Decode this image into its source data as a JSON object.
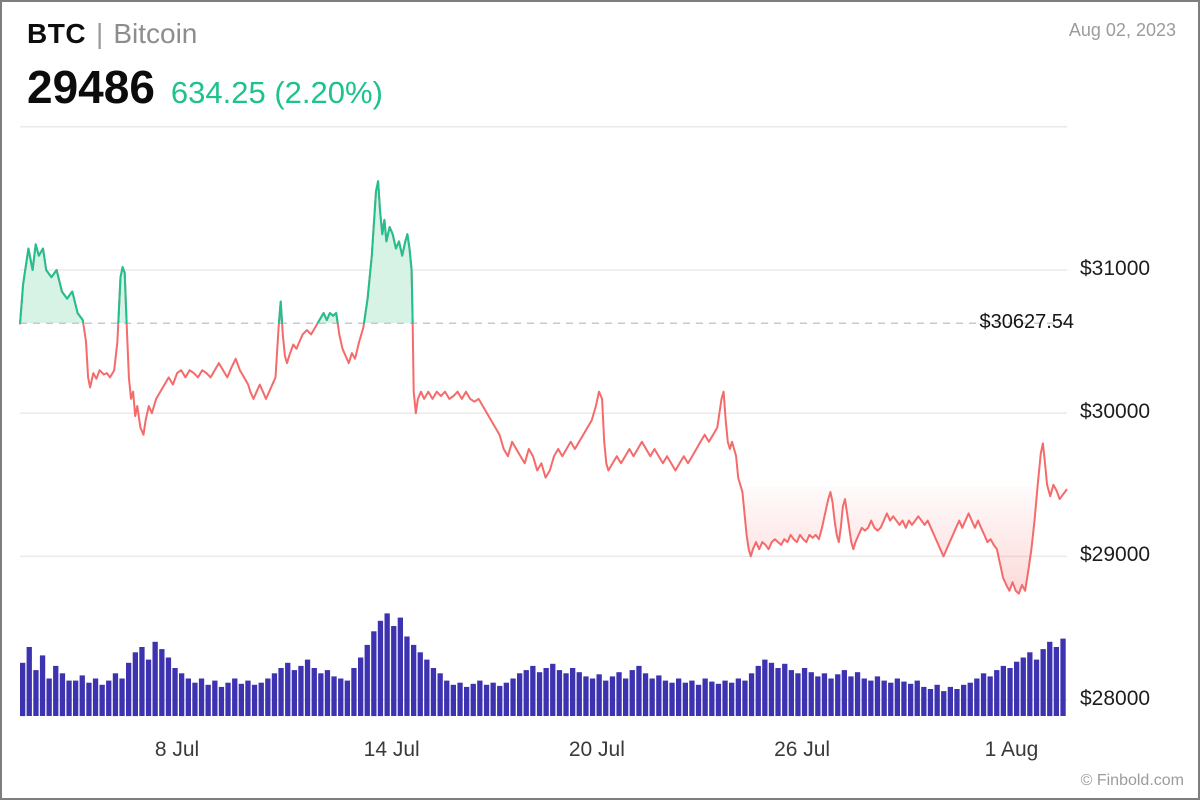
{
  "header": {
    "symbol": "BTC",
    "separator": "|",
    "name": "Bitcoin",
    "price": "29486",
    "change": "634.25 (2.20%)",
    "date": "Aug 02, 2023"
  },
  "footer": {
    "credit": "© Finbold.com"
  },
  "colors": {
    "up": "#1EC28E",
    "up_fill": "#D6F3E5",
    "down": "#F56A6A",
    "volume": "#3D32B0",
    "grid": "#EAEAEA",
    "ref_line": "#C9C9C9"
  },
  "chart_data": {
    "type": "line",
    "title": "BTC | Bitcoin price with volume",
    "xlabel": "",
    "ylabel": "",
    "ylim": [
      28000,
      32000
    ],
    "grid": true,
    "reference_price": 30627.54,
    "reference_label": "$30627.54",
    "current_price": 29486,
    "y_gridlines": [
      32000,
      31000,
      30000,
      29000,
      28000
    ],
    "y_ticks": [
      {
        "price": 31000,
        "label": "$31000"
      },
      {
        "price": 30000,
        "label": "$30000"
      },
      {
        "price": 29000,
        "label": "$29000"
      },
      {
        "price": 28000,
        "label": "$28000"
      }
    ],
    "x_ticks": [
      {
        "pos": 150,
        "label": "8 Jul"
      },
      {
        "pos": 355,
        "label": "14 Jul"
      },
      {
        "pos": 551,
        "label": "20 Jul"
      },
      {
        "pos": 747,
        "label": "26 Jul"
      },
      {
        "pos": 947,
        "label": "1 Aug"
      }
    ],
    "price_series": [
      [
        0,
        30620
      ],
      [
        3,
        30900
      ],
      [
        8,
        31150
      ],
      [
        12,
        31000
      ],
      [
        15,
        31180
      ],
      [
        18,
        31100
      ],
      [
        22,
        31150
      ],
      [
        25,
        31000
      ],
      [
        30,
        30950
      ],
      [
        35,
        31000
      ],
      [
        40,
        30850
      ],
      [
        45,
        30800
      ],
      [
        50,
        30850
      ],
      [
        55,
        30700
      ],
      [
        60,
        30650
      ],
      [
        63,
        30500
      ],
      [
        65,
        30250
      ],
      [
        67,
        30180
      ],
      [
        70,
        30280
      ],
      [
        73,
        30240
      ],
      [
        76,
        30300
      ],
      [
        80,
        30270
      ],
      [
        83,
        30280
      ],
      [
        86,
        30250
      ],
      [
        90,
        30300
      ],
      [
        93,
        30500
      ],
      [
        96,
        30950
      ],
      [
        98,
        31020
      ],
      [
        100,
        30980
      ],
      [
        102,
        30600
      ],
      [
        104,
        30250
      ],
      [
        106,
        30100
      ],
      [
        108,
        30150
      ],
      [
        110,
        29980
      ],
      [
        112,
        30050
      ],
      [
        115,
        29900
      ],
      [
        118,
        29850
      ],
      [
        120,
        29950
      ],
      [
        123,
        30050
      ],
      [
        126,
        30000
      ],
      [
        130,
        30100
      ],
      [
        134,
        30150
      ],
      [
        138,
        30200
      ],
      [
        142,
        30250
      ],
      [
        146,
        30200
      ],
      [
        150,
        30280
      ],
      [
        154,
        30300
      ],
      [
        158,
        30250
      ],
      [
        162,
        30300
      ],
      [
        166,
        30280
      ],
      [
        170,
        30250
      ],
      [
        174,
        30300
      ],
      [
        178,
        30280
      ],
      [
        182,
        30250
      ],
      [
        186,
        30300
      ],
      [
        190,
        30350
      ],
      [
        194,
        30300
      ],
      [
        198,
        30250
      ],
      [
        202,
        30320
      ],
      [
        206,
        30380
      ],
      [
        210,
        30300
      ],
      [
        214,
        30250
      ],
      [
        218,
        30200
      ],
      [
        220,
        30150
      ],
      [
        223,
        30100
      ],
      [
        226,
        30150
      ],
      [
        229,
        30200
      ],
      [
        232,
        30150
      ],
      [
        235,
        30100
      ],
      [
        238,
        30150
      ],
      [
        241,
        30200
      ],
      [
        244,
        30250
      ],
      [
        247,
        30600
      ],
      [
        249,
        30780
      ],
      [
        251,
        30550
      ],
      [
        253,
        30400
      ],
      [
        255,
        30350
      ],
      [
        258,
        30420
      ],
      [
        261,
        30480
      ],
      [
        264,
        30450
      ],
      [
        267,
        30500
      ],
      [
        270,
        30550
      ],
      [
        274,
        30580
      ],
      [
        278,
        30550
      ],
      [
        282,
        30600
      ],
      [
        286,
        30650
      ],
      [
        290,
        30700
      ],
      [
        293,
        30650
      ],
      [
        296,
        30700
      ],
      [
        299,
        30680
      ],
      [
        302,
        30700
      ],
      [
        305,
        30550
      ],
      [
        308,
        30450
      ],
      [
        311,
        30400
      ],
      [
        314,
        30350
      ],
      [
        317,
        30420
      ],
      [
        320,
        30380
      ],
      [
        324,
        30500
      ],
      [
        328,
        30600
      ],
      [
        332,
        30800
      ],
      [
        336,
        31100
      ],
      [
        340,
        31550
      ],
      [
        342,
        31620
      ],
      [
        344,
        31400
      ],
      [
        346,
        31250
      ],
      [
        348,
        31350
      ],
      [
        350,
        31200
      ],
      [
        353,
        31300
      ],
      [
        356,
        31250
      ],
      [
        359,
        31150
      ],
      [
        362,
        31200
      ],
      [
        365,
        31100
      ],
      [
        368,
        31200
      ],
      [
        370,
        31250
      ],
      [
        372,
        31150
      ],
      [
        374,
        31000
      ],
      [
        375,
        30650
      ],
      [
        376,
        30150
      ],
      [
        378,
        30000
      ],
      [
        380,
        30100
      ],
      [
        383,
        30150
      ],
      [
        386,
        30100
      ],
      [
        390,
        30150
      ],
      [
        394,
        30100
      ],
      [
        398,
        30150
      ],
      [
        402,
        30120
      ],
      [
        406,
        30150
      ],
      [
        410,
        30100
      ],
      [
        414,
        30120
      ],
      [
        418,
        30150
      ],
      [
        422,
        30100
      ],
      [
        426,
        30150
      ],
      [
        430,
        30100
      ],
      [
        434,
        30080
      ],
      [
        438,
        30100
      ],
      [
        442,
        30050
      ],
      [
        446,
        30000
      ],
      [
        450,
        29950
      ],
      [
        454,
        29900
      ],
      [
        458,
        29850
      ],
      [
        462,
        29750
      ],
      [
        466,
        29700
      ],
      [
        470,
        29800
      ],
      [
        474,
        29750
      ],
      [
        478,
        29700
      ],
      [
        482,
        29650
      ],
      [
        486,
        29750
      ],
      [
        490,
        29700
      ],
      [
        494,
        29600
      ],
      [
        498,
        29650
      ],
      [
        502,
        29550
      ],
      [
        506,
        29600
      ],
      [
        510,
        29700
      ],
      [
        514,
        29750
      ],
      [
        518,
        29700
      ],
      [
        522,
        29750
      ],
      [
        526,
        29800
      ],
      [
        530,
        29750
      ],
      [
        534,
        29800
      ],
      [
        538,
        29850
      ],
      [
        542,
        29900
      ],
      [
        546,
        29950
      ],
      [
        550,
        30050
      ],
      [
        553,
        30150
      ],
      [
        556,
        30100
      ],
      [
        558,
        29800
      ],
      [
        560,
        29650
      ],
      [
        562,
        29600
      ],
      [
        566,
        29650
      ],
      [
        570,
        29700
      ],
      [
        574,
        29650
      ],
      [
        578,
        29700
      ],
      [
        582,
        29750
      ],
      [
        586,
        29700
      ],
      [
        590,
        29750
      ],
      [
        594,
        29800
      ],
      [
        598,
        29750
      ],
      [
        602,
        29700
      ],
      [
        606,
        29750
      ],
      [
        610,
        29700
      ],
      [
        614,
        29650
      ],
      [
        618,
        29700
      ],
      [
        622,
        29650
      ],
      [
        626,
        29600
      ],
      [
        630,
        29650
      ],
      [
        634,
        29700
      ],
      [
        638,
        29650
      ],
      [
        642,
        29700
      ],
      [
        646,
        29750
      ],
      [
        650,
        29800
      ],
      [
        654,
        29850
      ],
      [
        658,
        29800
      ],
      [
        662,
        29850
      ],
      [
        666,
        29900
      ],
      [
        670,
        30100
      ],
      [
        672,
        30150
      ],
      [
        674,
        29950
      ],
      [
        676,
        29800
      ],
      [
        678,
        29750
      ],
      [
        680,
        29800
      ],
      [
        682,
        29750
      ],
      [
        684,
        29700
      ],
      [
        686,
        29550
      ],
      [
        688,
        29500
      ],
      [
        690,
        29450
      ],
      [
        692,
        29300
      ],
      [
        694,
        29150
      ],
      [
        696,
        29050
      ],
      [
        698,
        29000
      ],
      [
        700,
        29050
      ],
      [
        703,
        29100
      ],
      [
        706,
        29050
      ],
      [
        709,
        29100
      ],
      [
        712,
        29080
      ],
      [
        715,
        29050
      ],
      [
        718,
        29100
      ],
      [
        721,
        29120
      ],
      [
        724,
        29100
      ],
      [
        727,
        29080
      ],
      [
        730,
        29120
      ],
      [
        733,
        29100
      ],
      [
        736,
        29150
      ],
      [
        739,
        29120
      ],
      [
        742,
        29100
      ],
      [
        745,
        29150
      ],
      [
        748,
        29120
      ],
      [
        751,
        29100
      ],
      [
        754,
        29150
      ],
      [
        757,
        29130
      ],
      [
        760,
        29150
      ],
      [
        763,
        29120
      ],
      [
        766,
        29200
      ],
      [
        769,
        29300
      ],
      [
        772,
        29400
      ],
      [
        774,
        29450
      ],
      [
        776,
        29380
      ],
      [
        778,
        29250
      ],
      [
        780,
        29150
      ],
      [
        782,
        29100
      ],
      [
        784,
        29200
      ],
      [
        786,
        29350
      ],
      [
        788,
        29400
      ],
      [
        790,
        29300
      ],
      [
        792,
        29200
      ],
      [
        794,
        29100
      ],
      [
        796,
        29050
      ],
      [
        798,
        29100
      ],
      [
        801,
        29150
      ],
      [
        804,
        29200
      ],
      [
        807,
        29180
      ],
      [
        810,
        29200
      ],
      [
        813,
        29250
      ],
      [
        816,
        29200
      ],
      [
        819,
        29180
      ],
      [
        822,
        29200
      ],
      [
        825,
        29250
      ],
      [
        828,
        29300
      ],
      [
        831,
        29250
      ],
      [
        834,
        29280
      ],
      [
        837,
        29250
      ],
      [
        840,
        29220
      ],
      [
        843,
        29250
      ],
      [
        846,
        29200
      ],
      [
        849,
        29250
      ],
      [
        852,
        29220
      ],
      [
        855,
        29250
      ],
      [
        858,
        29280
      ],
      [
        861,
        29250
      ],
      [
        864,
        29220
      ],
      [
        867,
        29250
      ],
      [
        870,
        29200
      ],
      [
        873,
        29150
      ],
      [
        876,
        29100
      ],
      [
        879,
        29050
      ],
      [
        882,
        29000
      ],
      [
        885,
        29050
      ],
      [
        888,
        29100
      ],
      [
        891,
        29150
      ],
      [
        894,
        29200
      ],
      [
        897,
        29250
      ],
      [
        900,
        29200
      ],
      [
        903,
        29250
      ],
      [
        906,
        29300
      ],
      [
        909,
        29250
      ],
      [
        912,
        29200
      ],
      [
        915,
        29250
      ],
      [
        918,
        29200
      ],
      [
        921,
        29150
      ],
      [
        924,
        29100
      ],
      [
        927,
        29120
      ],
      [
        930,
        29080
      ],
      [
        933,
        29050
      ],
      [
        936,
        28950
      ],
      [
        939,
        28850
      ],
      [
        942,
        28800
      ],
      [
        945,
        28760
      ],
      [
        948,
        28820
      ],
      [
        951,
        28760
      ],
      [
        954,
        28740
      ],
      [
        957,
        28800
      ],
      [
        960,
        28760
      ],
      [
        963,
        28900
      ],
      [
        966,
        29050
      ],
      [
        969,
        29250
      ],
      [
        972,
        29500
      ],
      [
        975,
        29720
      ],
      [
        977,
        29790
      ],
      [
        979,
        29650
      ],
      [
        981,
        29500
      ],
      [
        984,
        29420
      ],
      [
        987,
        29500
      ],
      [
        990,
        29460
      ],
      [
        993,
        29400
      ],
      [
        996,
        29430
      ],
      [
        1000,
        29470
      ]
    ],
    "volume_relative": [
      45,
      60,
      38,
      52,
      30,
      42,
      35,
      28,
      28,
      33,
      26,
      30,
      24,
      28,
      35,
      30,
      45,
      55,
      60,
      48,
      65,
      58,
      50,
      40,
      35,
      30,
      26,
      30,
      24,
      28,
      22,
      26,
      30,
      25,
      28,
      24,
      26,
      30,
      35,
      40,
      45,
      38,
      42,
      48,
      40,
      35,
      38,
      32,
      30,
      28,
      40,
      50,
      62,
      75,
      85,
      92,
      80,
      88,
      70,
      62,
      55,
      48,
      40,
      35,
      28,
      24,
      26,
      22,
      25,
      28,
      24,
      26,
      23,
      26,
      30,
      35,
      38,
      42,
      36,
      40,
      44,
      38,
      35,
      40,
      36,
      32,
      30,
      34,
      28,
      32,
      36,
      30,
      38,
      42,
      35,
      30,
      33,
      28,
      26,
      30,
      26,
      28,
      24,
      30,
      27,
      25,
      28,
      26,
      30,
      28,
      35,
      42,
      48,
      45,
      40,
      44,
      38,
      35,
      40,
      36,
      32,
      35,
      30,
      34,
      38,
      32,
      36,
      30,
      28,
      32,
      28,
      26,
      30,
      27,
      25,
      28,
      22,
      20,
      24,
      18,
      22,
      20,
      24,
      26,
      30,
      35,
      32,
      38,
      42,
      40,
      46,
      50,
      55,
      48,
      58,
      65,
      60,
      68
    ]
  }
}
